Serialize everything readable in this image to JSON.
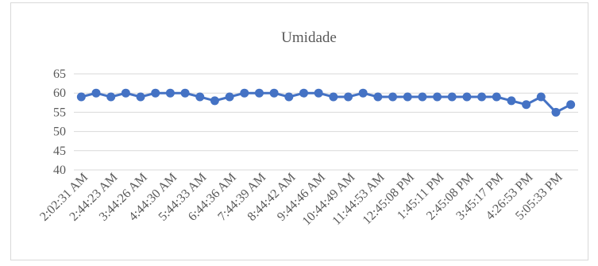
{
  "chart_data": {
    "type": "line",
    "title": "Umidade",
    "xlabel": "",
    "ylabel": "",
    "ylim": [
      40,
      65
    ],
    "yticks": [
      40,
      45,
      50,
      55,
      60,
      65
    ],
    "grid": true,
    "legend": "none",
    "color": "#4472c4",
    "x_tick_labels": [
      "2:02:31 AM",
      "2:44:23 AM",
      "3:44:26 AM",
      "4:44:30 AM",
      "5:44:33 AM",
      "6:44:36 AM",
      "7:44:39 AM",
      "8:44:42 AM",
      "9:44:46 AM",
      "10:44:49 AM",
      "11:44:53 AM",
      "12:45:08 PM",
      "1:45:11 PM",
      "2:45:08 PM",
      "3:45:17 PM",
      "4:26:53 PM",
      "5:05:33 PM"
    ],
    "series": [
      {
        "values": [
          59,
          60,
          59,
          60,
          59,
          60,
          60,
          60,
          59,
          58,
          59,
          60,
          60,
          60,
          59,
          60,
          60,
          59,
          59,
          60,
          59,
          59,
          59,
          59,
          59,
          59,
          59,
          59,
          59,
          58,
          57,
          59,
          55,
          57
        ]
      }
    ]
  }
}
